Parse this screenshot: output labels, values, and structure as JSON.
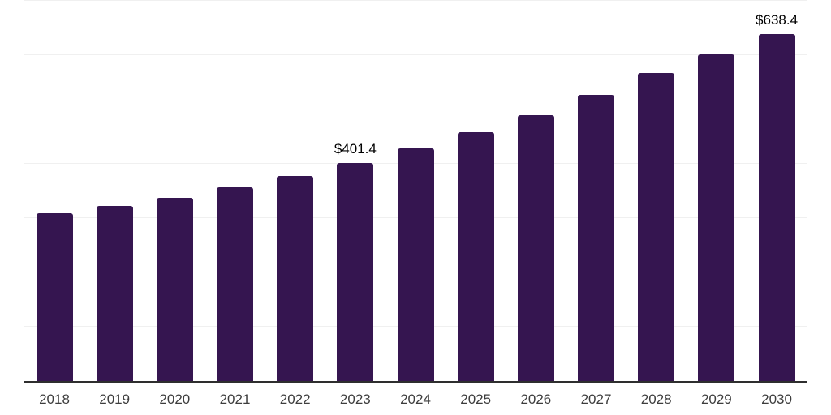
{
  "chart_data": {
    "type": "bar",
    "title": "",
    "xlabel": "",
    "ylabel": "",
    "categories": [
      "2018",
      "2019",
      "2020",
      "2021",
      "2022",
      "2023",
      "2024",
      "2025",
      "2026",
      "2027",
      "2028",
      "2029",
      "2030"
    ],
    "values": [
      308.5,
      322.1,
      338.0,
      356.2,
      377.0,
      401.4,
      428.0,
      458.0,
      489.6,
      527.0,
      567.2,
      601.5,
      638.4
    ],
    "data_labels": {
      "2023": "$401.4",
      "2030": "$638.4"
    },
    "ylim": [
      0,
      700
    ],
    "gridline_step": 100,
    "grid": true,
    "legend": false,
    "colors": {
      "bar": "#351550",
      "gridline": "#f0f0f0",
      "axis_line": "#2e2e2e",
      "tick_label": "#3d3d3d",
      "data_label": "#000000"
    }
  }
}
